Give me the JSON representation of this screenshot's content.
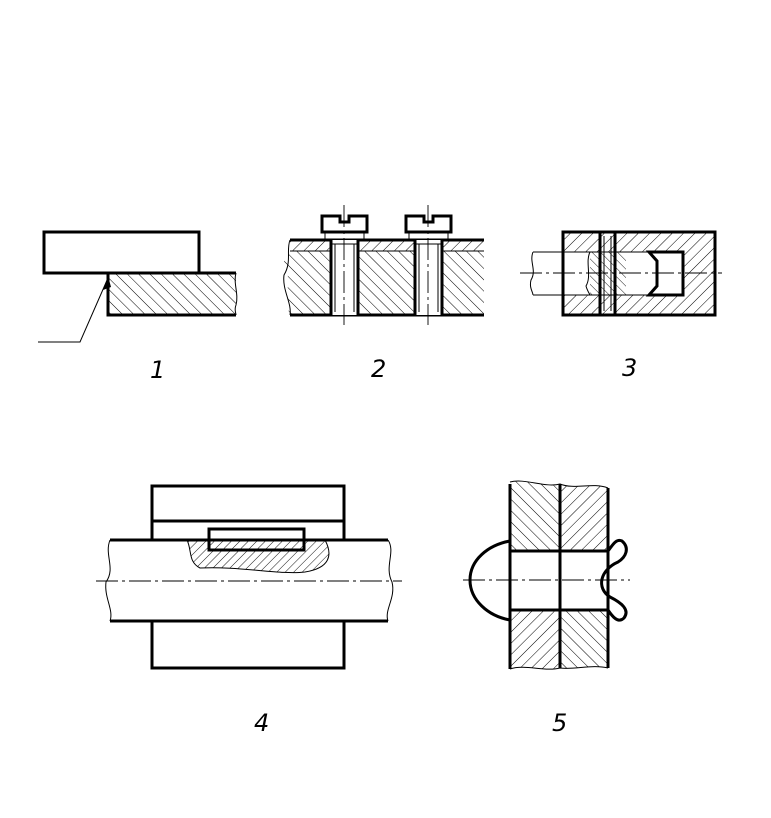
{
  "figures": [
    {
      "id": "1",
      "label": "1"
    },
    {
      "id": "2",
      "label": "2"
    },
    {
      "id": "3",
      "label": "3"
    },
    {
      "id": "4",
      "label": "4"
    },
    {
      "id": "5",
      "label": "5"
    }
  ]
}
